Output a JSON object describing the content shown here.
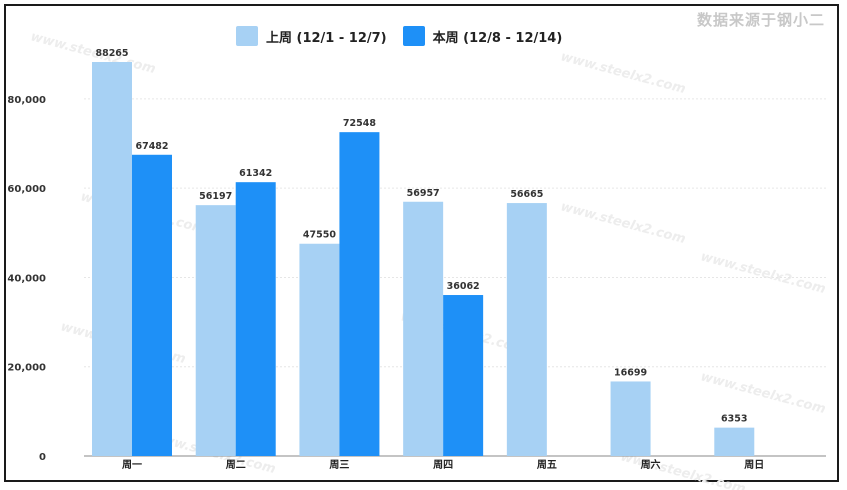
{
  "source_note": "数据来源于钢小二",
  "watermark": "www.steelx2.com",
  "colors": {
    "last_week": "#a7d1f4",
    "this_week": "#1e90f7",
    "grid": "#e6e6e6",
    "axis": "#888888"
  },
  "chart_data": {
    "type": "bar",
    "title": "",
    "xlabel": "",
    "ylabel": "",
    "categories": [
      "周一",
      "周二",
      "周三",
      "周四",
      "周五",
      "周六",
      "周日"
    ],
    "series": [
      {
        "name": "上周 (12/1 - 12/7)",
        "values": [
          88265,
          56197,
          47550,
          56957,
          56665,
          16699,
          6353
        ]
      },
      {
        "name": "本周 (12/8 - 12/14)",
        "values": [
          67482,
          61342,
          72548,
          36062,
          null,
          null,
          null
        ]
      }
    ],
    "ylim": [
      0,
      88265
    ],
    "yticks": [
      0,
      20000,
      40000,
      60000,
      80000
    ],
    "ytick_labels": [
      "0",
      "20,000",
      "40,000",
      "60,000",
      "80,000"
    ],
    "grid": true,
    "legend_position": "top-center"
  }
}
